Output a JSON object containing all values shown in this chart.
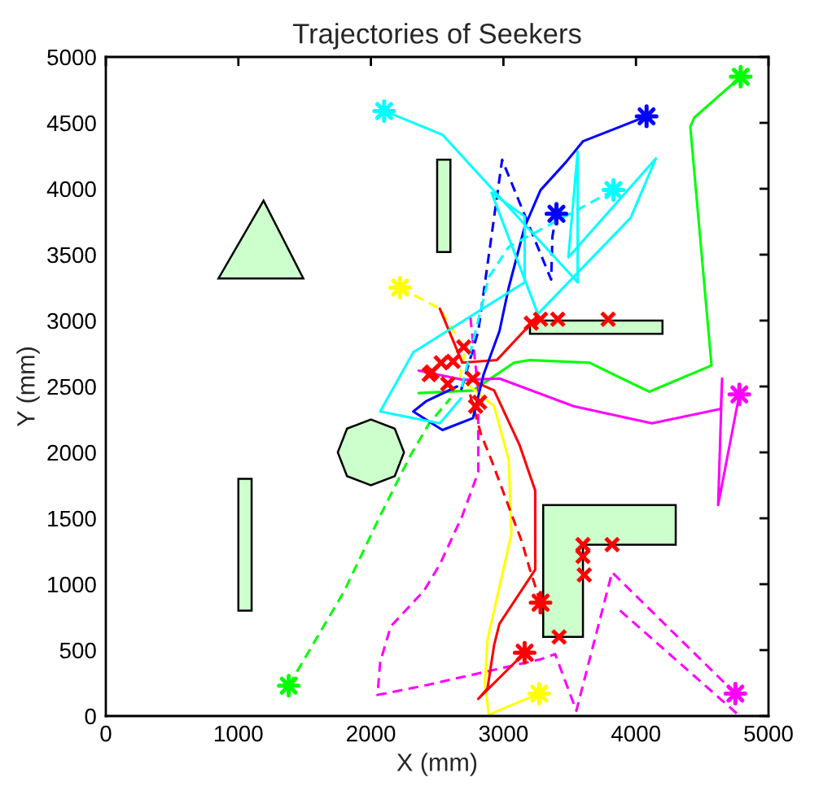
{
  "chart_data": {
    "type": "line",
    "title": "Trajectories of Seekers",
    "xlabel": "X (mm)",
    "ylabel": "Y (mm)",
    "xlim": [
      0,
      5000
    ],
    "ylim": [
      0,
      5000
    ],
    "xticks": [
      0,
      1000,
      2000,
      3000,
      4000,
      5000
    ],
    "yticks": [
      0,
      500,
      1000,
      1500,
      2000,
      2500,
      3000,
      3500,
      4000,
      4500,
      5000
    ],
    "series": [
      {
        "type": "area",
        "color": "#ccffcc",
        "x": [
          850,
          1490,
          1190
        ],
        "values": [
          3320,
          3320,
          3910
        ]
      },
      {
        "type": "area",
        "color": "#ccffcc",
        "x": [
          2500,
          2600,
          2600,
          2500
        ],
        "values": [
          3520,
          3520,
          4220,
          4220
        ]
      },
      {
        "type": "area",
        "color": "#ccffcc",
        "x": [
          3200,
          4200,
          4200,
          3200
        ],
        "values": [
          2900,
          2900,
          3000,
          3000
        ]
      },
      {
        "type": "area",
        "color": "#ccffcc",
        "x": [
          2250,
          2180,
          2000,
          1820,
          1750,
          1820,
          2000,
          2180
        ],
        "values": [
          2000,
          2180,
          2250,
          2180,
          2000,
          1820,
          1750,
          1820
        ]
      },
      {
        "type": "area",
        "color": "#ccffcc",
        "x": [
          1000,
          1100,
          1100,
          1000
        ],
        "values": [
          800,
          800,
          1800,
          1800
        ]
      },
      {
        "type": "area",
        "color": "#ccffcc",
        "x": [
          3300,
          4300,
          4300,
          3600,
          3600,
          3300
        ],
        "values": [
          1600,
          1600,
          1300,
          1300,
          600,
          600
        ]
      },
      {
        "color": "#00ff00",
        "line_style": "solid",
        "x": [
          4790,
          4440,
          4410,
          4570,
          4100,
          3650,
          3200,
          3080,
          2770,
          2360
        ],
        "values": [
          4850,
          4540,
          4470,
          2660,
          2460,
          2680,
          2700,
          2680,
          2470,
          2450
        ]
      },
      {
        "color": "#00ff00",
        "line_style": "dashed",
        "x": [
          1380,
          1800,
          2070,
          2300,
          2440,
          2600
        ],
        "values": [
          230,
          950,
          1520,
          1980,
          2220,
          2410
        ]
      },
      {
        "color": "#ffff00",
        "line_style": "solid",
        "x": [
          3270,
          2890,
          2860,
          2880,
          3060,
          3040,
          2930,
          2710
        ],
        "values": [
          170,
          10,
          250,
          580,
          1380,
          1940,
          2350,
          2530
        ]
      },
      {
        "color": "#ffff00",
        "line_style": "dashed",
        "x": [
          2220,
          2520,
          2710,
          2660
        ],
        "values": [
          3250,
          3090,
          2780,
          2500
        ]
      },
      {
        "color": "#ff00ff",
        "line_style": "solid",
        "x": [
          4780,
          4620,
          4650,
          4640,
          4120,
          3530,
          2970,
          2700,
          2360
        ],
        "values": [
          2440,
          1600,
          2560,
          2330,
          2220,
          2350,
          2560,
          2550,
          2620
        ]
      },
      {
        "color": "#ff00ff",
        "line_style": "dashed",
        "x": [
          4750,
          3820,
          3550,
          3390,
          3280,
          2400,
          2050,
          2070,
          2150,
          2400,
          2520,
          2690,
          2810,
          2810,
          2750
        ],
        "values": [
          170,
          1090,
          40,
          470,
          430,
          230,
          160,
          410,
          680,
          950,
          1150,
          1520,
          1850,
          2470,
          3030
        ]
      },
      {
        "color": "#ff00ff",
        "line_style": "dashed",
        "x": [
          4760,
          3880
        ],
        "values": [
          20,
          800
        ]
      },
      {
        "color": "#ff0000",
        "line_style": "solid",
        "x": [
          3160,
          2810,
          2880,
          2930,
          2970,
          3240,
          3240,
          3120,
          2930,
          2750
        ],
        "values": [
          480,
          130,
          210,
          540,
          700,
          1110,
          1710,
          2060,
          2470,
          2550
        ]
      },
      {
        "color": "#ff0000",
        "line_style": "dashed",
        "x": [
          3280,
          3200,
          3140,
          3080,
          2910,
          2830,
          2740
        ],
        "values": [
          860,
          1110,
          1320,
          1480,
          1940,
          2140,
          2470
        ]
      },
      {
        "color": "#ff0000",
        "line_style": "solid",
        "x": [
          3210,
          2950,
          2690,
          2520
        ],
        "values": [
          2980,
          2700,
          2680,
          3090
        ]
      },
      {
        "color": "#0000ff",
        "line_style": "solid",
        "x": [
          4080,
          3600,
          3470,
          3280,
          3160,
          3040,
          2970,
          2850,
          2770,
          2540,
          2320,
          2420,
          2650
        ],
        "values": [
          4550,
          4360,
          4200,
          3990,
          3710,
          3250,
          2920,
          2590,
          2260,
          2170,
          2310,
          2390,
          2500
        ]
      },
      {
        "color": "#0000ff",
        "line_style": "dashed",
        "x": [
          3400,
          3370,
          3360,
          2990,
          2810,
          2680
        ],
        "values": [
          3810,
          3640,
          3310,
          4220,
          2920,
          2470
        ]
      },
      {
        "color": "#00ffff",
        "line_style": "solid",
        "x": [
          2100,
          2540,
          3560,
          3560,
          3490,
          4150,
          3960,
          3260,
          2910,
          3160,
          3160,
          2400,
          2320,
          2070,
          2520,
          2680
        ],
        "values": [
          4590,
          4410,
          3290,
          4280,
          3480,
          4230,
          3780,
          3050,
          3970,
          3790,
          3290,
          2810,
          2760,
          2310,
          2220,
          2410
        ]
      },
      {
        "color": "#00ffff",
        "line_style": "dashed",
        "x": [
          3830,
          3650,
          3040,
          2890,
          2770,
          2680
        ],
        "values": [
          3990,
          3890,
          3560,
          3330,
          2840,
          2470
        ]
      },
      {
        "type": "scatter",
        "marker": "cross",
        "color": "#ff0000",
        "x": [
          3210,
          3280,
          3410,
          3790,
          3600,
          3600,
          3610,
          3820,
          3420,
          2440,
          2620,
          2580,
          2770,
          2820,
          2460,
          2790,
          2530,
          2700
        ],
        "values": [
          2980,
          3010,
          3010,
          3010,
          1300,
          1210,
          1070,
          1300,
          600,
          2590,
          2690,
          2520,
          2560,
          2380,
          2610,
          2350,
          2680,
          2800
        ]
      },
      {
        "type": "scatter",
        "marker": "star",
        "color": "#00ffff",
        "x": [
          2100
        ],
        "values": [
          4590
        ]
      },
      {
        "type": "scatter",
        "marker": "star",
        "color": "#0000ff",
        "x": [
          4080
        ],
        "values": [
          4550
        ]
      },
      {
        "type": "scatter",
        "marker": "star",
        "color": "#00ff00",
        "x": [
          4790
        ],
        "values": [
          4850
        ]
      },
      {
        "type": "scatter",
        "marker": "star",
        "color": "#00ffff",
        "x": [
          3830
        ],
        "values": [
          3990
        ]
      },
      {
        "type": "scatter",
        "marker": "star",
        "color": "#0000ff",
        "x": [
          3400
        ],
        "values": [
          3810
        ]
      },
      {
        "type": "scatter",
        "marker": "star",
        "color": "#ffff00",
        "x": [
          2220
        ],
        "values": [
          3250
        ]
      },
      {
        "type": "scatter",
        "marker": "star",
        "color": "#ff00ff",
        "x": [
          4780
        ],
        "values": [
          2440
        ]
      },
      {
        "type": "scatter",
        "marker": "star",
        "color": "#00ff00",
        "x": [
          1380
        ],
        "values": [
          230
        ]
      },
      {
        "type": "scatter",
        "marker": "star",
        "color": "#ffff00",
        "x": [
          3270
        ],
        "values": [
          170
        ]
      },
      {
        "type": "scatter",
        "marker": "star",
        "color": "#ff00ff",
        "x": [
          4750
        ],
        "values": [
          170
        ]
      },
      {
        "type": "scatter",
        "marker": "star",
        "color": "#ff0000",
        "x": [
          3280
        ],
        "values": [
          860
        ]
      },
      {
        "type": "scatter",
        "marker": "star",
        "color": "#ff0000",
        "x": [
          3160
        ],
        "values": [
          480
        ]
      }
    ]
  }
}
